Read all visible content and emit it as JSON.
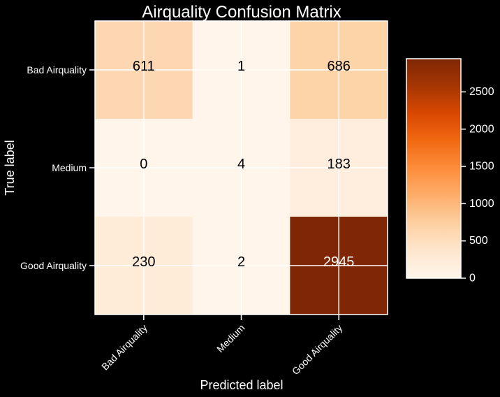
{
  "chart_data": {
    "type": "heatmap",
    "title": "Airquality Confusion Matrix",
    "xlabel": "Predicted label",
    "ylabel": "True label",
    "x_categories": [
      "Bad Airquality",
      "Medium",
      "Good Airquality"
    ],
    "y_categories": [
      "Bad Airquality",
      "Medium",
      "Good Airquality"
    ],
    "values": [
      [
        611,
        1,
        686
      ],
      [
        0,
        4,
        183
      ],
      [
        230,
        2,
        2945
      ]
    ],
    "value_labels": [
      [
        "611",
        "1",
        "686"
      ],
      [
        "0",
        "4",
        "183"
      ],
      [
        "230",
        "2",
        "2945"
      ]
    ],
    "colormap": "Oranges",
    "colorbar": {
      "range": [
        0,
        2945
      ],
      "ticks": [
        0,
        500,
        1000,
        1500,
        2000,
        2500
      ],
      "tick_labels": [
        "0",
        "500",
        "1000",
        "1500",
        "2000",
        "2500"
      ]
    },
    "grid": true,
    "colors": {
      "background": "#000000",
      "text": "#ffffff",
      "light_text": "#000000",
      "dark_text": "#ffffff"
    }
  }
}
